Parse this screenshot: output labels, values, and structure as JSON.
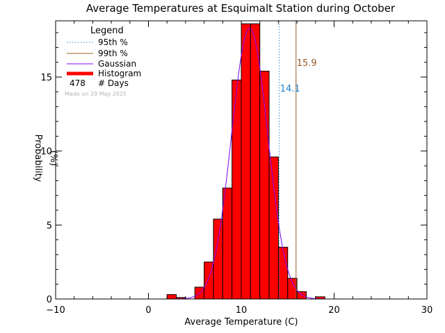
{
  "chart_data": {
    "type": "bar",
    "title": "Average Temperatures at Esquimalt Station during October",
    "xlabel": "Average Temperature (C)",
    "ylabel_top": "Probability",
    "ylabel_bottom": "(%)",
    "xlim": [
      -10,
      30
    ],
    "ylim": [
      0,
      18.8
    ],
    "xticks": [
      -10,
      0,
      10,
      20,
      30
    ],
    "yticks": [
      0,
      5,
      10,
      15
    ],
    "grid": false,
    "legend_placement": "top-left",
    "bin_width": 1,
    "histogram": {
      "bin_left_edges": [
        2,
        3,
        4,
        5,
        6,
        7,
        8,
        9,
        10,
        11,
        12,
        13,
        14,
        15,
        16,
        17,
        18
      ],
      "values": [
        0.3,
        0.1,
        0.0,
        0.8,
        2.5,
        5.4,
        7.5,
        14.8,
        18.6,
        18.6,
        15.4,
        9.6,
        3.5,
        1.4,
        0.5,
        0.0,
        0.15
      ]
    },
    "gaussian": {
      "mean": 10.9,
      "sigma": 1.95,
      "peak": 18.3
    },
    "p95": {
      "value": 14.1,
      "label": "14.1"
    },
    "p99": {
      "value": 15.9,
      "label": "15.9"
    },
    "legend": {
      "title": "Legend",
      "items": [
        "95th %",
        "99th %",
        "Gaussian",
        "Histogram"
      ],
      "days_count": "478",
      "days_label": "# Days",
      "made_on": "Made on 29 May 2025"
    },
    "colors": {
      "histogram_fill": "#ff0000",
      "histogram_edge": "#000000",
      "gaussian": "#7b00ff",
      "p95": "#1e7fc8",
      "p99": "#9a5a24",
      "made_on": "#b4b4b4"
    }
  }
}
